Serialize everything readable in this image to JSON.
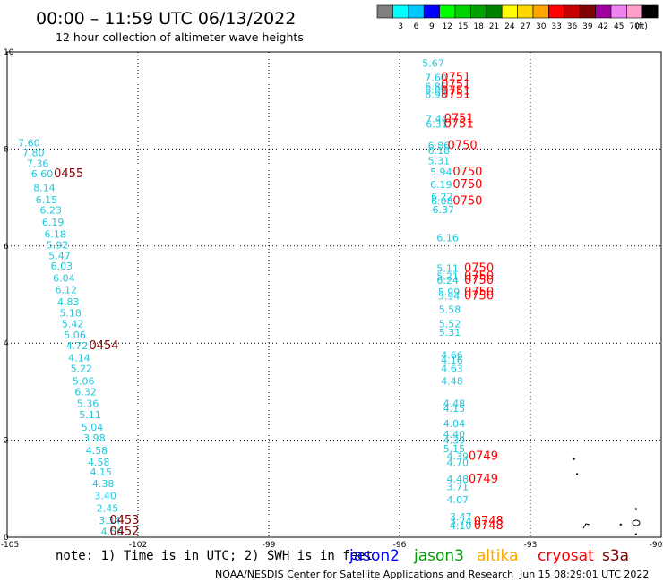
{
  "header": {
    "title": "00:00 – 11:59 UTC 06/13/2022",
    "subtitle": "12 hour collection of altimeter wave heights"
  },
  "legend": {
    "unit": "(ft)",
    "swatches": [
      {
        "color": "#7f7f7f",
        "label": ""
      },
      {
        "color": "#00ffff",
        "label": "3"
      },
      {
        "color": "#00c8ff",
        "label": "6"
      },
      {
        "color": "#0000ff",
        "label": "9"
      },
      {
        "color": "#00ff00",
        "label": "12"
      },
      {
        "color": "#00d200",
        "label": "15"
      },
      {
        "color": "#00a000",
        "label": "18"
      },
      {
        "color": "#008000",
        "label": "21"
      },
      {
        "color": "#ffff00",
        "label": "24"
      },
      {
        "color": "#ffd700",
        "label": "27"
      },
      {
        "color": "#ffa500",
        "label": "30"
      },
      {
        "color": "#ff0000",
        "label": "33"
      },
      {
        "color": "#c80000",
        "label": "36"
      },
      {
        "color": "#800000",
        "label": "39"
      },
      {
        "color": "#a000a0",
        "label": "42"
      },
      {
        "color": "#ee82ee",
        "label": "45"
      },
      {
        "color": "#ff9ec8",
        "label": "70"
      },
      {
        "color": "#000000",
        "label": ""
      }
    ]
  },
  "axes": {
    "x_ticks": [
      "-105",
      "-102",
      "-99",
      "-96",
      "-93",
      "-90"
    ],
    "y_ticks": [
      "0",
      "2",
      "4",
      "6",
      "8",
      "10"
    ],
    "x_range": [
      -105,
      -90
    ],
    "y_range": [
      0,
      10
    ]
  },
  "colors": {
    "swh": "#1ec8dc",
    "time_red": "#ff0000",
    "time_dark": "#800000",
    "grid": "#000000"
  },
  "map_data": {
    "west_track": {
      "swh": [
        {
          "v": "7.60",
          "lon": -104.75,
          "lat": 8.05
        },
        {
          "v": "7.80",
          "lon": -104.65,
          "lat": 7.85
        },
        {
          "v": "7.36",
          "lon": -104.55,
          "lat": 7.63
        },
        {
          "v": "6.60",
          "lon": -104.45,
          "lat": 7.42
        },
        {
          "v": "8.14",
          "lon": -104.4,
          "lat": 7.13
        },
        {
          "v": "6.15",
          "lon": -104.35,
          "lat": 6.88
        },
        {
          "v": "6.23",
          "lon": -104.25,
          "lat": 6.67
        },
        {
          "v": "6.19",
          "lon": -104.2,
          "lat": 6.42
        },
        {
          "v": "6.18",
          "lon": -104.15,
          "lat": 6.17
        },
        {
          "v": "5.92",
          "lon": -104.1,
          "lat": 5.95
        },
        {
          "v": "5.47",
          "lon": -104.05,
          "lat": 5.73
        },
        {
          "v": "6.03",
          "lon": -104.0,
          "lat": 5.52
        },
        {
          "v": "6.04",
          "lon": -103.95,
          "lat": 5.27
        },
        {
          "v": "6.12",
          "lon": -103.9,
          "lat": 5.03
        },
        {
          "v": "4.83",
          "lon": -103.85,
          "lat": 4.78
        },
        {
          "v": "5.18",
          "lon": -103.8,
          "lat": 4.55
        },
        {
          "v": "5.42",
          "lon": -103.75,
          "lat": 4.33
        },
        {
          "v": "5.06",
          "lon": -103.7,
          "lat": 4.1
        },
        {
          "v": "4.72",
          "lon": -103.65,
          "lat": 3.87
        },
        {
          "v": "4.14",
          "lon": -103.6,
          "lat": 3.63
        },
        {
          "v": "5.22",
          "lon": -103.55,
          "lat": 3.4
        },
        {
          "v": "5.06",
          "lon": -103.5,
          "lat": 3.15
        },
        {
          "v": "6.32",
          "lon": -103.45,
          "lat": 2.92
        },
        {
          "v": "5.36",
          "lon": -103.4,
          "lat": 2.68
        },
        {
          "v": "5.11",
          "lon": -103.35,
          "lat": 2.45
        },
        {
          "v": "5.04",
          "lon": -103.3,
          "lat": 2.2
        },
        {
          "v": "3.98",
          "lon": -103.25,
          "lat": 1.97
        },
        {
          "v": "4.58",
          "lon": -103.2,
          "lat": 1.72
        },
        {
          "v": "4.58",
          "lon": -103.15,
          "lat": 1.48
        },
        {
          "v": "4.15",
          "lon": -103.1,
          "lat": 1.27
        },
        {
          "v": "4.38",
          "lon": -103.05,
          "lat": 1.03
        },
        {
          "v": "3.40",
          "lon": -103.0,
          "lat": 0.78
        },
        {
          "v": "2.45",
          "lon": -102.95,
          "lat": 0.53
        },
        {
          "v": "3.34",
          "lon": -102.9,
          "lat": 0.28
        },
        {
          "v": "4.56",
          "lon": -102.85,
          "lat": 0.05
        }
      ],
      "times": [
        {
          "v": "0455",
          "lon": -103.93,
          "lat": 7.42,
          "style": "dark"
        },
        {
          "v": "0454",
          "lon": -103.12,
          "lat": 3.87,
          "style": "dark"
        },
        {
          "v": "0453",
          "lon": -102.65,
          "lat": 0.28,
          "style": "dark"
        },
        {
          "v": "0452",
          "lon": -102.65,
          "lat": 0.05,
          "style": "dark"
        }
      ]
    },
    "east_track": {
      "swh": [
        {
          "v": "5.67",
          "lon": -95.48,
          "lat": 9.7
        },
        {
          "v": "7.60",
          "lon": -95.42,
          "lat": 9.4
        },
        {
          "v": "6.86",
          "lon": -95.42,
          "lat": 9.22
        },
        {
          "v": "6.09",
          "lon": -95.42,
          "lat": 9.14
        },
        {
          "v": "6.98",
          "lon": -95.42,
          "lat": 9.05
        },
        {
          "v": "7.44",
          "lon": -95.4,
          "lat": 8.55
        },
        {
          "v": "6.31",
          "lon": -95.4,
          "lat": 8.44
        },
        {
          "v": "6.86",
          "lon": -95.35,
          "lat": 8.0
        },
        {
          "v": "6.18",
          "lon": -95.35,
          "lat": 7.9
        },
        {
          "v": "5.31",
          "lon": -95.35,
          "lat": 7.68
        },
        {
          "v": "5.94",
          "lon": -95.3,
          "lat": 7.45
        },
        {
          "v": "6.19",
          "lon": -95.3,
          "lat": 7.2
        },
        {
          "v": "6.22",
          "lon": -95.28,
          "lat": 6.95
        },
        {
          "v": "6.08",
          "lon": -95.28,
          "lat": 6.85
        },
        {
          "v": "6.37",
          "lon": -95.25,
          "lat": 6.68
        },
        {
          "v": "6.16",
          "lon": -95.15,
          "lat": 6.1
        },
        {
          "v": "5.11",
          "lon": -95.15,
          "lat": 5.47
        },
        {
          "v": "5.21",
          "lon": -95.15,
          "lat": 5.3
        },
        {
          "v": "6.24",
          "lon": -95.15,
          "lat": 5.22
        },
        {
          "v": "5.99",
          "lon": -95.12,
          "lat": 4.98
        },
        {
          "v": "5.94",
          "lon": -95.12,
          "lat": 4.9
        },
        {
          "v": "5.58",
          "lon": -95.1,
          "lat": 4.62
        },
        {
          "v": "5.52",
          "lon": -95.1,
          "lat": 4.33
        },
        {
          "v": "5.31",
          "lon": -95.1,
          "lat": 4.15
        },
        {
          "v": "4.66",
          "lon": -95.05,
          "lat": 3.68
        },
        {
          "v": "4.16",
          "lon": -95.05,
          "lat": 3.58
        },
        {
          "v": "4.63",
          "lon": -95.05,
          "lat": 3.4
        },
        {
          "v": "4.48",
          "lon": -95.05,
          "lat": 3.15
        },
        {
          "v": "4.48",
          "lon": -95.0,
          "lat": 2.68
        },
        {
          "v": "4.15",
          "lon": -95.0,
          "lat": 2.58
        },
        {
          "v": "4.04",
          "lon": -95.0,
          "lat": 2.27
        },
        {
          "v": "4.40",
          "lon": -95.0,
          "lat": 2.05
        },
        {
          "v": "4.39",
          "lon": -95.0,
          "lat": 1.93
        },
        {
          "v": "5.15",
          "lon": -95.0,
          "lat": 1.75
        },
        {
          "v": "4.39",
          "lon": -94.92,
          "lat": 1.6
        },
        {
          "v": "4.70",
          "lon": -94.92,
          "lat": 1.47
        },
        {
          "v": "4.48",
          "lon": -94.92,
          "lat": 1.13
        },
        {
          "v": "3.71",
          "lon": -94.92,
          "lat": 0.97
        },
        {
          "v": "4.07",
          "lon": -94.92,
          "lat": 0.7
        },
        {
          "v": "3.47",
          "lon": -94.85,
          "lat": 0.35
        },
        {
          "v": "3.74",
          "lon": -94.85,
          "lat": 0.26
        },
        {
          "v": "4.10",
          "lon": -94.85,
          "lat": 0.17
        }
      ],
      "times": [
        {
          "v": "0751",
          "lon": -95.05,
          "lat": 9.4,
          "style": "red"
        },
        {
          "v": "0751",
          "lon": -95.05,
          "lat": 9.25,
          "style": "red"
        },
        {
          "v": "0751",
          "lon": -95.05,
          "lat": 9.12,
          "style": "red"
        },
        {
          "v": "0751",
          "lon": -95.05,
          "lat": 9.05,
          "style": "red"
        },
        {
          "v": "0751",
          "lon": -94.98,
          "lat": 8.55,
          "style": "red"
        },
        {
          "v": "0751",
          "lon": -94.98,
          "lat": 8.44,
          "style": "red"
        },
        {
          "v": "0750",
          "lon": -94.9,
          "lat": 8.0,
          "style": "red"
        },
        {
          "v": "0750",
          "lon": -94.78,
          "lat": 7.45,
          "style": "red"
        },
        {
          "v": "0750",
          "lon": -94.78,
          "lat": 7.2,
          "style": "red"
        },
        {
          "v": "0750",
          "lon": -94.78,
          "lat": 6.85,
          "style": "red"
        },
        {
          "v": "0750",
          "lon": -94.52,
          "lat": 5.47,
          "style": "red"
        },
        {
          "v": "0750",
          "lon": -94.52,
          "lat": 5.3,
          "style": "red"
        },
        {
          "v": "0750",
          "lon": -94.52,
          "lat": 5.22,
          "style": "red"
        },
        {
          "v": "0750",
          "lon": -94.52,
          "lat": 4.98,
          "style": "red"
        },
        {
          "v": "0750",
          "lon": -94.52,
          "lat": 4.9,
          "style": "red"
        },
        {
          "v": "0749",
          "lon": -94.42,
          "lat": 1.6,
          "style": "red"
        },
        {
          "v": "0749",
          "lon": -94.42,
          "lat": 1.13,
          "style": "red"
        },
        {
          "v": "0748",
          "lon": -94.3,
          "lat": 0.26,
          "style": "red"
        },
        {
          "v": "0748",
          "lon": -94.3,
          "lat": 0.17,
          "style": "red"
        }
      ]
    },
    "coast_points": [
      {
        "lon": -92.02,
        "lat": 1.63
      },
      {
        "lon": -91.95,
        "lat": 1.32
      },
      {
        "lon": -90.6,
        "lat": 0.6
      },
      {
        "lon": -90.95,
        "lat": 0.28
      },
      {
        "lon": -90.6,
        "lat": 0.08
      }
    ]
  },
  "footer": {
    "note": "note:  1) Time is in UTC;  2) SWH is in feet",
    "satellites": [
      {
        "name": "jason2",
        "color": "#0000ff"
      },
      {
        "name": "jason3",
        "color": "#00a000"
      },
      {
        "name": "altika",
        "color": "#ffa500"
      },
      {
        "name": "cryosat",
        "color": "#ff0000"
      },
      {
        "name": "s3a",
        "color": "#800000"
      }
    ],
    "credit": "NOAA/NESDIS Center for Satellite Applications and Research",
    "timestamp": "Jun 15 08:29:01 UTC 2022"
  }
}
